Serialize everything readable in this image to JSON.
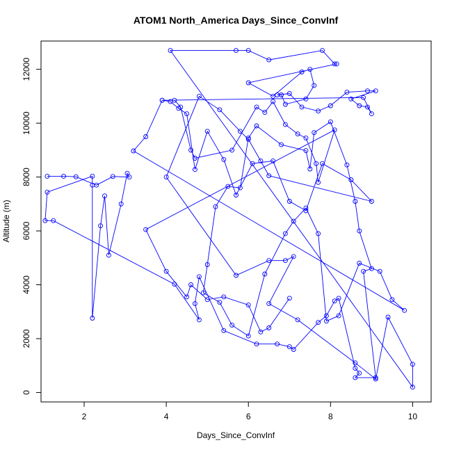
{
  "chart_data": {
    "type": "scatter",
    "title": "ATOM1 North_America Days_Since_ConvInf",
    "xlabel": "Days_Since_ConvInf",
    "ylabel": "Altitude (m)",
    "xlim": [
      0.95,
      10.45
    ],
    "ylim": [
      -350,
      13050
    ],
    "xticks": [
      "2",
      "4",
      "6",
      "8",
      "10"
    ],
    "xtick_values": [
      2,
      4,
      6,
      8,
      10
    ],
    "yticks": [
      "0",
      "2000",
      "4000",
      "6000",
      "8000",
      "10000",
      "12000"
    ],
    "ytick_values": [
      0,
      2000,
      4000,
      6000,
      8000,
      10000,
      12000
    ],
    "grid": false,
    "series_color": "#0000ff",
    "series": [
      {
        "x": [
          1.1,
          1.5,
          1.8,
          2.3,
          2.7,
          3.1,
          3.05,
          2.9,
          2.6,
          2.5,
          2.4,
          2.2,
          2.2,
          2.2,
          1.1,
          1.05,
          1.25,
          4.2,
          4.8,
          4.7,
          4.8,
          5.4,
          6.2,
          6.7,
          7.0,
          7.1,
          7.7,
          7.9,
          8.1,
          8.2,
          8.6,
          8.7,
          8.6,
          9.1,
          8.8,
          9.0,
          8.7,
          8.6,
          8.4,
          8.0,
          7.6,
          7.5,
          7.4,
          6.8,
          6.2,
          6.0,
          5.8,
          5.5,
          5.2,
          5.0,
          4.9,
          5.3,
          5.6,
          6.0,
          6.4,
          6.9,
          7.1,
          7.4,
          7.7,
          7.9,
          8.2,
          8.7,
          9.2,
          9.5,
          9.8,
          3.2,
          3.5,
          3.9,
          4.1,
          4.3,
          4.5,
          4.7,
          5.0,
          5.4,
          5.7,
          6.1,
          6.6,
          7.0,
          7.4,
          7.8,
          8.5,
          9.0,
          6.5,
          6.3,
          6.0,
          5.8,
          5.3,
          4.8,
          4.0,
          5.7,
          6.5,
          6.9,
          7.1,
          6.5,
          7.2,
          8.6,
          9.1,
          9.4,
          10.0,
          10.0,
          4.1,
          5.7,
          6.0,
          6.5,
          7.8,
          8.1,
          8.15,
          6.0,
          6.6,
          7.3,
          7.5,
          7.6,
          7.4,
          6.9,
          6.8,
          6.7,
          7.0,
          7.3,
          7.7,
          8.0,
          8.4,
          8.9,
          9.1,
          8.5,
          8.7,
          8.9,
          9.0,
          8.8,
          3.9,
          4.2,
          4.35,
          4.6,
          4.7,
          5.6,
          6.2,
          6.4,
          6.6,
          6.9,
          7.2,
          7.4,
          7.65,
          7.7,
          8.1,
          3.5,
          4.0,
          4.5,
          4.6,
          5.0,
          5.4,
          6.0,
          6.3,
          6.5,
          7.0
        ],
        "y": [
          8030,
          8030,
          8010,
          7700,
          8020,
          8000,
          8140,
          7000,
          5100,
          7300,
          6190,
          2760,
          7700,
          8030,
          7440,
          6380,
          6380,
          4020,
          2700,
          3300,
          4300,
          2300,
          1800,
          1800,
          1700,
          1600,
          2600,
          2850,
          3400,
          3500,
          900,
          720,
          550,
          550,
          4500,
          4600,
          6000,
          7100,
          8450,
          10050,
          9650,
          8300,
          8980,
          9200,
          9900,
          9450,
          7600,
          7650,
          6900,
          4750,
          3700,
          3350,
          2500,
          2100,
          4400,
          5900,
          6360,
          6850,
          5900,
          2650,
          2850,
          4800,
          4500,
          3450,
          3050,
          8970,
          9500,
          10850,
          10800,
          10550,
          10350,
          8280,
          9700,
          8650,
          7330,
          8500,
          8600,
          7100,
          6750,
          8500,
          7900,
          7100,
          8050,
          8600,
          9400,
          9700,
          10500,
          11000,
          8000,
          4350,
          4900,
          4900,
          5050,
          3300,
          2700,
          1100,
          500,
          2800,
          1050,
          200,
          12700,
          12700,
          12700,
          12350,
          12700,
          12200,
          12200,
          11500,
          11000,
          11900,
          12000,
          11400,
          10900,
          10700,
          11050,
          11050,
          11100,
          10600,
          10450,
          10650,
          11150,
          11200,
          11200,
          10900,
          10650,
          10600,
          10350,
          10950,
          10850,
          10850,
          10600,
          9000,
          8700,
          9000,
          10600,
          10400,
          10800,
          9950,
          9600,
          9450,
          8500,
          7800,
          9750,
          6050,
          4500,
          3550,
          4000,
          3450,
          3550,
          3250,
          2250,
          2400,
          3500
        ]
      }
    ]
  }
}
